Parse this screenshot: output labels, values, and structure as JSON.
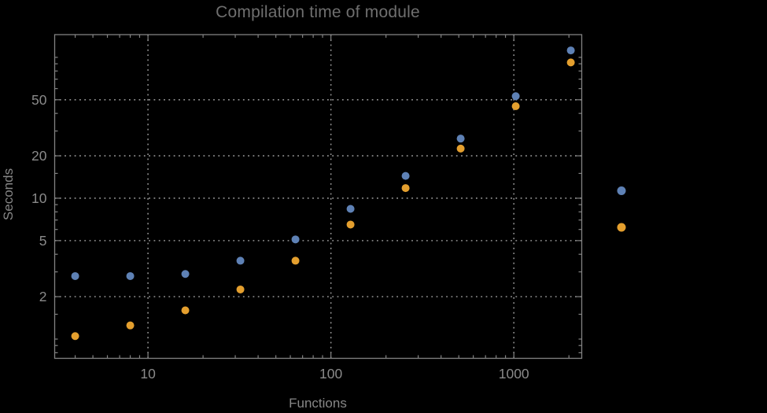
{
  "title": "Compilation time of module",
  "x_axis": {
    "label": "Functions",
    "scale": "log",
    "major_ticks": [
      10,
      100,
      1000
    ],
    "major_tick_labels": [
      "10",
      "100",
      "1000"
    ],
    "minor_ticks": [
      4,
      5,
      6,
      7,
      8,
      9,
      20,
      30,
      40,
      50,
      60,
      70,
      80,
      90,
      200,
      300,
      400,
      500,
      600,
      700,
      800,
      900,
      2000
    ]
  },
  "y_axis": {
    "label": "Seconds",
    "scale": "log",
    "major_ticks": [
      2,
      5,
      10,
      20,
      50
    ],
    "major_tick_labels": [
      "2",
      "5",
      "10",
      "20",
      "50"
    ],
    "minor_ticks": [
      0.8,
      0.9,
      1,
      1.5,
      3,
      4,
      6,
      7,
      8,
      9,
      15,
      30,
      40,
      60,
      70,
      80,
      90,
      100
    ]
  },
  "chart_data": {
    "type": "scatter",
    "title": "Compilation time of module",
    "xlabel": "Functions",
    "ylabel": "Seconds",
    "x": [
      4,
      8,
      16,
      32,
      64,
      128,
      256,
      512,
      1024,
      2048
    ],
    "series": [
      {
        "name": "series-1-blue",
        "color": "#5e81b5",
        "values": [
          2.8,
          2.8,
          2.9,
          3.6,
          5.1,
          8.4,
          14.4,
          26.5,
          53,
          112
        ]
      },
      {
        "name": "series-2-orange",
        "color": "#e49f2e",
        "values": [
          1.05,
          1.25,
          1.6,
          2.25,
          3.6,
          6.5,
          11.8,
          22.5,
          45,
          92
        ]
      }
    ],
    "xlim": [
      3.09,
      2350
    ],
    "ylim": [
      0.73,
      145
    ],
    "grid": "dotted lines at major ticks, both axes",
    "legend": {
      "position": "outside-right",
      "labels_visible": false,
      "markers": [
        {
          "name": "legend-marker-series-1",
          "color": "#5e81b5"
        },
        {
          "name": "legend-marker-series-2",
          "color": "#e49f2e"
        }
      ]
    }
  },
  "colors": {
    "background": "#000000",
    "frame": "#828282",
    "grid": "#949494",
    "tick_labels": "#8a8a8a",
    "title": "#6f6f6f",
    "series1": "#5e81b5",
    "series2": "#e49f2e"
  }
}
